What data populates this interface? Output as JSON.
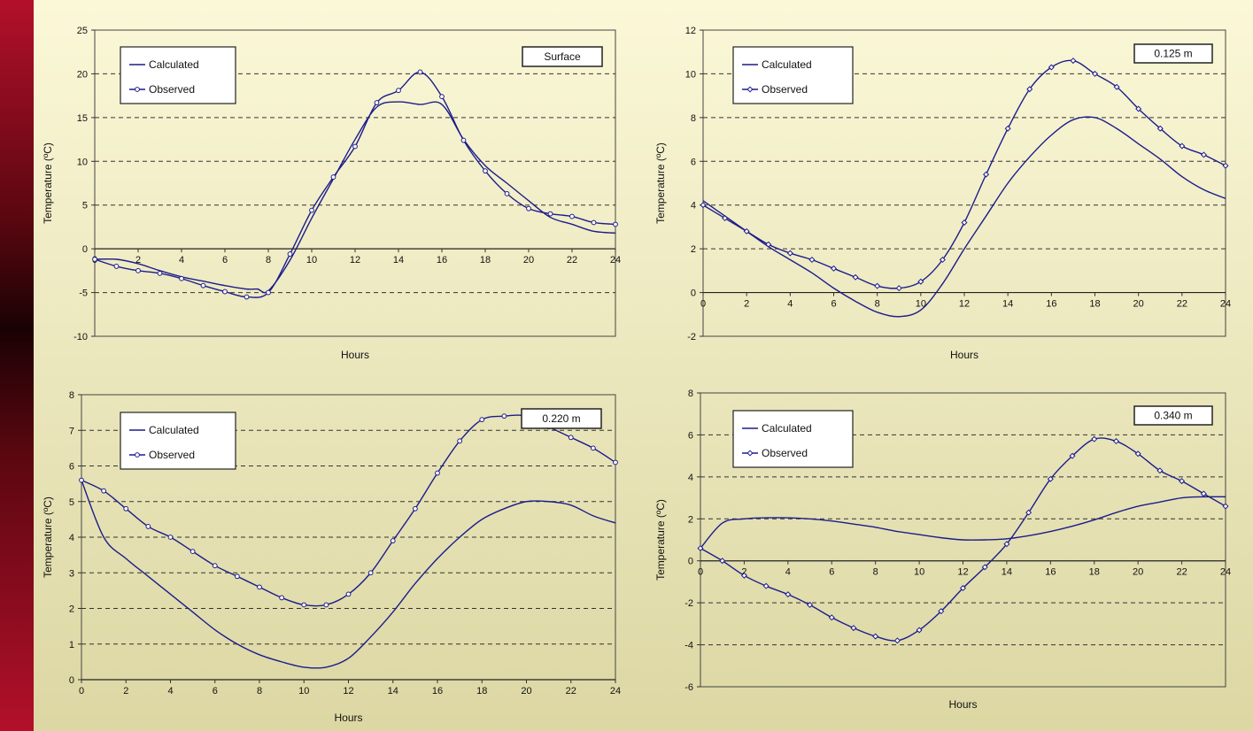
{
  "chart_data": [
    {
      "type": "line",
      "ylabel": "Temperature (ºC)",
      "xlabel": "Hours",
      "tag": "Surface",
      "xlim": [
        0,
        24
      ],
      "ylim": [
        -10,
        25
      ],
      "ytick_step": 5,
      "xtick_step": 2,
      "legend_placement": "top-left",
      "series": [
        {
          "name": "Calculated",
          "marker": "none",
          "x": [
            0,
            1,
            2,
            3,
            4,
            5,
            6,
            7,
            7.5,
            8,
            9,
            10,
            11,
            12,
            13,
            14,
            15,
            16,
            17,
            18,
            19,
            20,
            21,
            22,
            23,
            24
          ],
          "y": [
            -1.2,
            -1.2,
            -1.7,
            -2.5,
            -3.2,
            -3.7,
            -4.2,
            -4.6,
            -4.6,
            -4.8,
            -1.3,
            3.5,
            8,
            12.5,
            16.2,
            16.8,
            16.5,
            16.5,
            12.5,
            9.5,
            7.5,
            5.5,
            3.6,
            2.8,
            2,
            1.8
          ]
        },
        {
          "name": "Observed",
          "marker": "circle",
          "x": [
            0,
            1,
            2,
            3,
            4,
            5,
            6,
            7,
            8,
            9,
            10,
            11,
            12,
            13,
            14,
            15,
            16,
            17,
            18,
            19,
            20,
            21,
            22,
            23,
            24
          ],
          "y": [
            -1.2,
            -2,
            -2.5,
            -2.8,
            -3.4,
            -4.2,
            -4.9,
            -5.5,
            -5,
            -0.6,
            4.4,
            8.2,
            11.7,
            16.7,
            18.1,
            20.2,
            17.4,
            12.4,
            8.9,
            6.3,
            4.6,
            4,
            3.7,
            3,
            2.8
          ]
        }
      ]
    },
    {
      "type": "line",
      "ylabel": "Temperature (ºC)",
      "xlabel": "Hours",
      "tag": "0.125 m",
      "xlim": [
        0,
        24
      ],
      "ylim": [
        -2,
        12
      ],
      "ytick_step": 2,
      "xtick_step": 2,
      "legend_placement": "top-left",
      "series": [
        {
          "name": "Calculated",
          "marker": "none",
          "x": [
            0,
            1,
            2,
            3,
            4,
            5,
            6,
            7,
            8,
            9,
            10,
            11,
            12,
            13,
            14,
            15,
            16,
            17,
            18,
            19,
            20,
            21,
            22,
            23,
            24
          ],
          "y": [
            4.2,
            3.5,
            2.8,
            2.1,
            1.5,
            0.9,
            0.2,
            -0.4,
            -0.9,
            -1.1,
            -0.8,
            0.4,
            2,
            3.5,
            5,
            6.2,
            7.2,
            7.9,
            8,
            7.5,
            6.8,
            6.1,
            5.3,
            4.7,
            4.3
          ]
        },
        {
          "name": "Observed",
          "marker": "diamond",
          "x": [
            0,
            1,
            2,
            3,
            4,
            5,
            6,
            7,
            8,
            9,
            10,
            11,
            12,
            13,
            14,
            15,
            16,
            17,
            18,
            19,
            20,
            21,
            22,
            23,
            24
          ],
          "y": [
            4,
            3.4,
            2.8,
            2.2,
            1.8,
            1.5,
            1.1,
            0.7,
            0.3,
            0.2,
            0.5,
            1.5,
            3.2,
            5.4,
            7.5,
            9.3,
            10.3,
            10.6,
            10,
            9.4,
            8.4,
            7.5,
            6.7,
            6.3,
            5.8
          ]
        }
      ]
    },
    {
      "type": "line",
      "ylabel": "Temperature (ºC)",
      "xlabel": "Hours",
      "tag": "0.220 m",
      "xlim": [
        0,
        24
      ],
      "ylim": [
        0,
        8
      ],
      "ytick_step": 1,
      "xtick_step": 2,
      "legend_placement": "top-left",
      "series": [
        {
          "name": "Calculated",
          "marker": "none",
          "x": [
            0,
            1,
            2,
            3,
            4,
            5,
            6,
            7,
            8,
            9,
            10,
            11,
            12,
            13,
            14,
            15,
            16,
            17,
            18,
            19,
            20,
            21,
            22,
            23,
            24
          ],
          "y": [
            5.6,
            4,
            3.4,
            2.9,
            2.4,
            1.9,
            1.4,
            1,
            0.7,
            0.5,
            0.35,
            0.35,
            0.6,
            1.2,
            1.9,
            2.7,
            3.4,
            4,
            4.5,
            4.8,
            5,
            5,
            4.9,
            4.6,
            4.4
          ]
        },
        {
          "name": "Observed",
          "marker": "circle",
          "x": [
            0,
            1,
            2,
            3,
            4,
            5,
            6,
            7,
            8,
            9,
            10,
            11,
            12,
            13,
            14,
            15,
            16,
            17,
            18,
            19,
            20,
            21,
            22,
            23,
            24
          ],
          "y": [
            5.6,
            5.3,
            4.8,
            4.3,
            4,
            3.6,
            3.2,
            2.9,
            2.6,
            2.3,
            2.1,
            2.1,
            2.4,
            3,
            3.9,
            4.8,
            5.8,
            6.7,
            7.3,
            7.4,
            7.4,
            7.1,
            6.8,
            6.5,
            6.1
          ]
        }
      ]
    },
    {
      "type": "line",
      "ylabel": "Temperature (ºC)",
      "xlabel": "Hours",
      "tag": "0.340 m",
      "xlim": [
        0,
        24
      ],
      "ylim": [
        -6,
        8
      ],
      "ytick_step": 2,
      "xtick_step": 2,
      "legend_placement": "top-left",
      "series": [
        {
          "name": "Calculated",
          "marker": "none",
          "x": [
            0,
            1,
            2,
            3,
            4,
            5,
            6,
            7,
            8,
            9,
            10,
            11,
            12,
            13,
            14,
            15,
            16,
            17,
            18,
            19,
            20,
            21,
            22,
            23,
            24
          ],
          "y": [
            0.6,
            1.8,
            2,
            2.05,
            2.05,
            2,
            1.9,
            1.75,
            1.6,
            1.4,
            1.25,
            1.1,
            1,
            1,
            1.05,
            1.2,
            1.4,
            1.65,
            1.95,
            2.3,
            2.6,
            2.8,
            3,
            3.05,
            3.05
          ]
        },
        {
          "name": "Observed",
          "marker": "diamond",
          "x": [
            0,
            1,
            2,
            3,
            4,
            5,
            6,
            7,
            8,
            9,
            10,
            11,
            12,
            13,
            14,
            15,
            16,
            17,
            18,
            19,
            20,
            21,
            22,
            23,
            24
          ],
          "y": [
            0.6,
            0,
            -0.7,
            -1.2,
            -1.6,
            -2.1,
            -2.7,
            -3.2,
            -3.6,
            -3.8,
            -3.3,
            -2.4,
            -1.3,
            -0.3,
            0.8,
            2.3,
            3.9,
            5,
            5.8,
            5.7,
            5.1,
            4.3,
            3.8,
            3.2,
            2.6
          ]
        }
      ]
    }
  ],
  "colors": {
    "line": "#1c1c8c",
    "grid": "#333333",
    "panel": "#f3efc9"
  }
}
